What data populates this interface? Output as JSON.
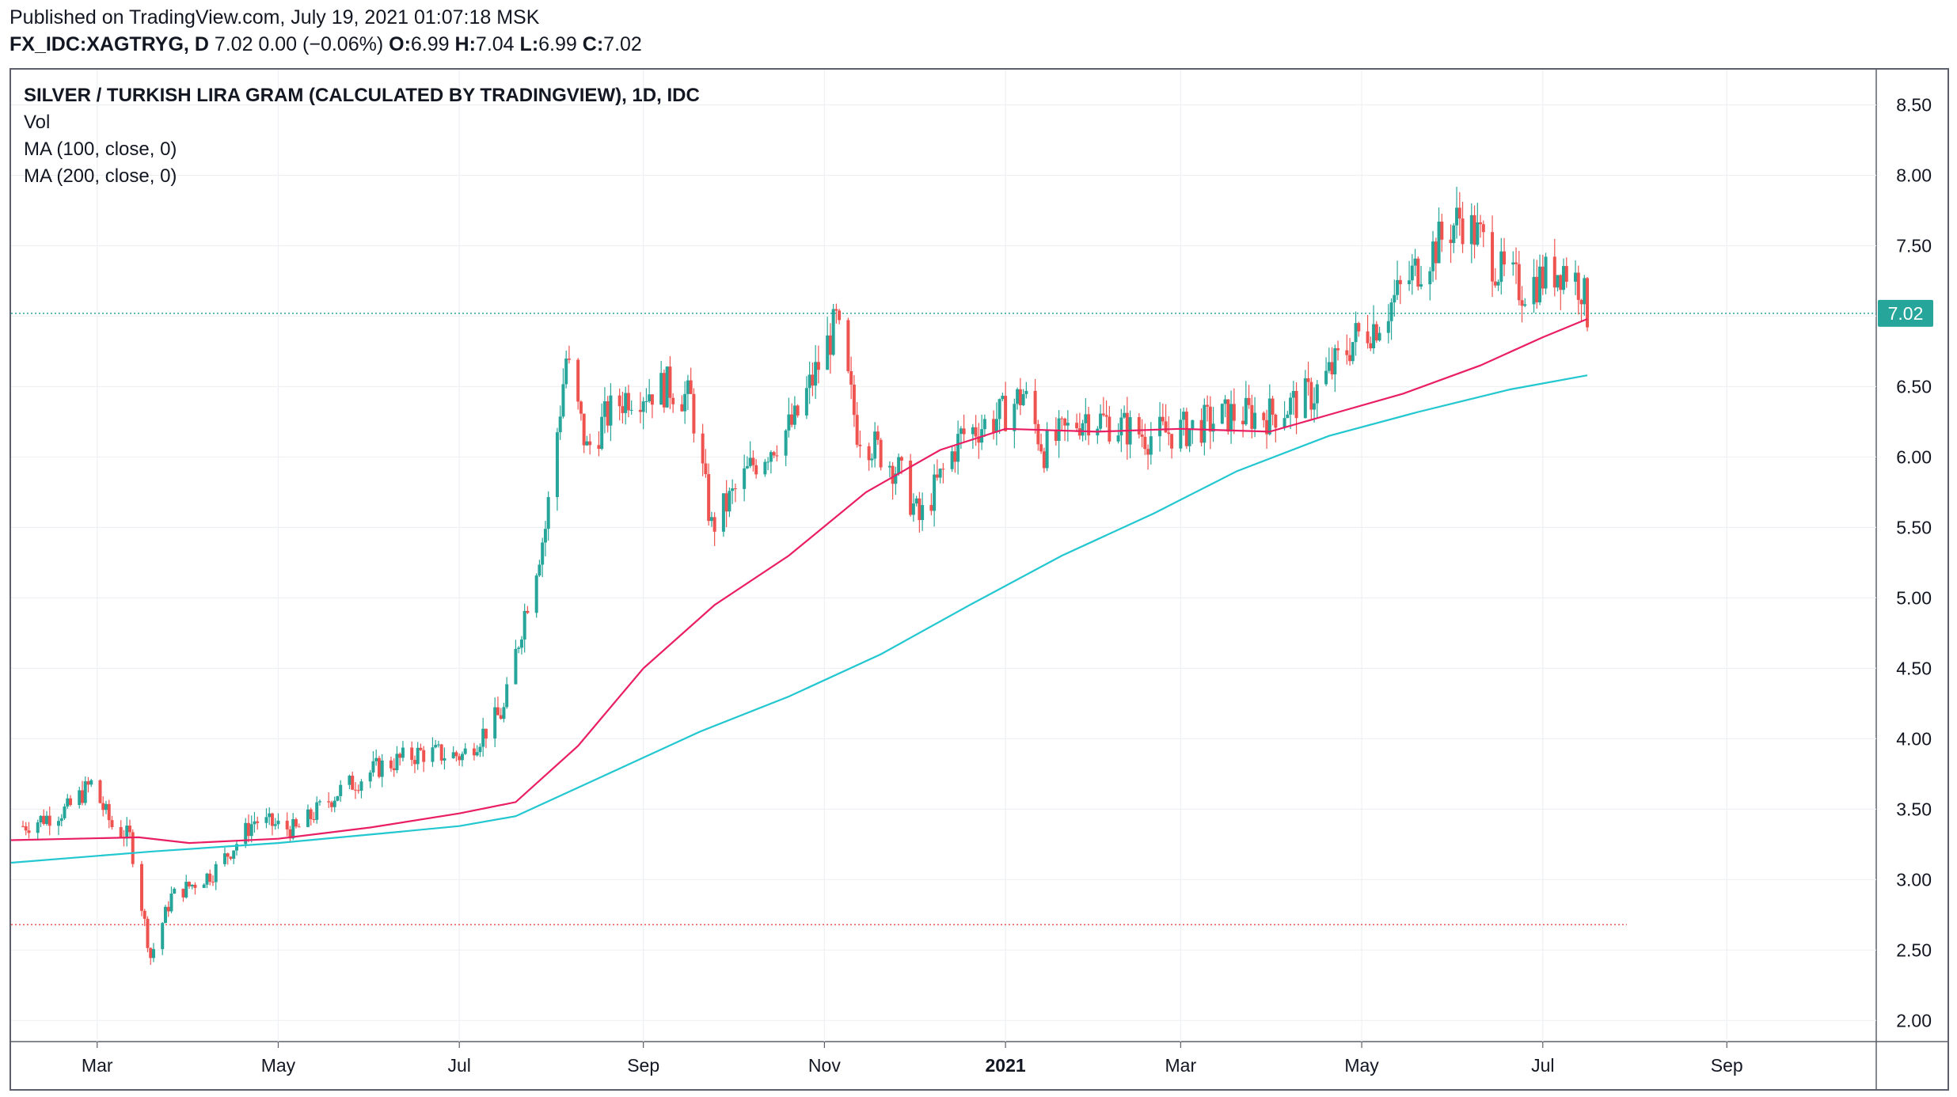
{
  "header": {
    "published": "Published on TradingView.com, July 19, 2021 01:07:18 MSK",
    "symbol": "FX_IDC:XAGTRYG, D",
    "ohlc_text": "7.02 0.00 (−0.06%)",
    "o_label": "O:",
    "o_value": "6.99",
    "h_label": "H:",
    "h_value": "7.04",
    "l_label": "L:",
    "l_value": "6.99",
    "c_label": "C:",
    "c_value": "7.02"
  },
  "legend": {
    "title": "SILVER / TURKISH LIRA GRAM (CALCULATED BY TRADINGVIEW), 1D, IDC",
    "vol": "Vol",
    "ma100": "MA (100, close, 0)",
    "ma200": "MA (200, close, 0)"
  },
  "chart_data": {
    "type": "candlestick",
    "title": "SILVER / TURKISH LIRA GRAM (CALCULATED BY TRADINGVIEW), 1D, IDC",
    "ylim": [
      1.85,
      8.75
    ],
    "y_ticks": [
      "2.00",
      "2.50",
      "3.00",
      "3.50",
      "4.00",
      "4.50",
      "5.00",
      "5.50",
      "6.00",
      "6.50",
      "7.00",
      "7.50",
      "8.00",
      "8.50"
    ],
    "x_ticks": [
      {
        "label": "Mar",
        "date": "2020-03-01",
        "bold": false
      },
      {
        "label": "May",
        "date": "2020-05-01",
        "bold": false
      },
      {
        "label": "Jul",
        "date": "2020-07-01",
        "bold": false
      },
      {
        "label": "Sep",
        "date": "2020-09-01",
        "bold": false
      },
      {
        "label": "Nov",
        "date": "2020-11-01",
        "bold": false
      },
      {
        "label": "2021",
        "date": "2021-01-01",
        "bold": true
      },
      {
        "label": "Mar",
        "date": "2021-03-01",
        "bold": false
      },
      {
        "label": "May",
        "date": "2021-05-01",
        "bold": false
      },
      {
        "label": "Jul",
        "date": "2021-07-01",
        "bold": false
      },
      {
        "label": "Sep",
        "date": "2021-09-01",
        "bold": false
      }
    ],
    "grid": true,
    "colors": {
      "up": "#26a69a",
      "down": "#ef5350",
      "ma100": "#e91e63",
      "ma200": "#22c7d0",
      "last_price": "#26a69a",
      "low_line": "#ef5350"
    },
    "last_price": {
      "value": 7.02,
      "label": "7.02"
    },
    "low_line": 2.68,
    "price_path": [
      [
        "2020-02-05",
        3.38
      ],
      [
        "2020-02-20",
        3.5
      ],
      [
        "2020-02-28",
        3.68
      ],
      [
        "2020-03-06",
        3.38
      ],
      [
        "2020-03-12",
        3.3
      ],
      [
        "2020-03-19",
        2.45
      ],
      [
        "2020-03-26",
        2.88
      ],
      [
        "2020-04-09",
        3.05
      ],
      [
        "2020-04-23",
        3.42
      ],
      [
        "2020-05-07",
        3.35
      ],
      [
        "2020-05-21",
        3.62
      ],
      [
        "2020-06-04",
        3.8
      ],
      [
        "2020-06-18",
        3.9
      ],
      [
        "2020-07-02",
        3.88
      ],
      [
        "2020-07-16",
        4.2
      ],
      [
        "2020-07-23",
        4.9
      ],
      [
        "2020-07-30",
        5.5
      ],
      [
        "2020-08-06",
        6.7
      ],
      [
        "2020-08-13",
        6.05
      ],
      [
        "2020-08-20",
        6.3
      ],
      [
        "2020-08-27",
        6.45
      ],
      [
        "2020-09-10",
        6.5
      ],
      [
        "2020-09-17",
        6.4
      ],
      [
        "2020-09-24",
        5.5
      ],
      [
        "2020-10-08",
        5.95
      ],
      [
        "2020-10-22",
        6.25
      ],
      [
        "2020-11-05",
        6.95
      ],
      [
        "2020-11-12",
        6.2
      ],
      [
        "2020-11-26",
        5.9
      ],
      [
        "2020-12-03",
        5.55
      ],
      [
        "2020-12-17",
        6.15
      ],
      [
        "2020-12-31",
        6.3
      ],
      [
        "2021-01-07",
        6.45
      ],
      [
        "2021-01-14",
        6.05
      ],
      [
        "2021-01-28",
        6.3
      ],
      [
        "2021-02-04",
        6.25
      ],
      [
        "2021-02-18",
        6.15
      ],
      [
        "2021-03-04",
        6.2
      ],
      [
        "2021-03-18",
        6.3
      ],
      [
        "2021-03-31",
        6.3
      ],
      [
        "2021-04-15",
        6.45
      ],
      [
        "2021-04-29",
        6.85
      ],
      [
        "2021-05-06",
        6.95
      ],
      [
        "2021-05-20",
        7.35
      ],
      [
        "2021-06-03",
        7.7
      ],
      [
        "2021-06-10",
        7.55
      ],
      [
        "2021-06-17",
        7.3
      ],
      [
        "2021-06-24",
        7.2
      ],
      [
        "2021-07-08",
        7.35
      ],
      [
        "2021-07-14",
        7.22
      ],
      [
        "2021-07-16",
        7.02
      ]
    ],
    "ma100": [
      [
        "2020-02-01",
        3.28
      ],
      [
        "2020-03-15",
        3.3
      ],
      [
        "2020-04-01",
        3.26
      ],
      [
        "2020-05-01",
        3.29
      ],
      [
        "2020-06-01",
        3.37
      ],
      [
        "2020-07-01",
        3.47
      ],
      [
        "2020-07-20",
        3.55
      ],
      [
        "2020-08-10",
        3.95
      ],
      [
        "2020-09-01",
        4.5
      ],
      [
        "2020-09-25",
        4.95
      ],
      [
        "2020-10-20",
        5.3
      ],
      [
        "2020-11-15",
        5.75
      ],
      [
        "2020-12-10",
        6.05
      ],
      [
        "2021-01-01",
        6.2
      ],
      [
        "2021-02-01",
        6.18
      ],
      [
        "2021-03-01",
        6.2
      ],
      [
        "2021-03-31",
        6.18
      ],
      [
        "2021-04-20",
        6.3
      ],
      [
        "2021-05-15",
        6.45
      ],
      [
        "2021-06-10",
        6.65
      ],
      [
        "2021-07-01",
        6.85
      ],
      [
        "2021-07-16",
        6.98
      ]
    ],
    "ma200": [
      [
        "2020-02-01",
        3.12
      ],
      [
        "2020-03-20",
        3.2
      ],
      [
        "2020-05-01",
        3.26
      ],
      [
        "2020-06-01",
        3.32
      ],
      [
        "2020-07-01",
        3.38
      ],
      [
        "2020-07-20",
        3.45
      ],
      [
        "2020-08-20",
        3.75
      ],
      [
        "2020-09-20",
        4.05
      ],
      [
        "2020-10-20",
        4.3
      ],
      [
        "2020-11-20",
        4.6
      ],
      [
        "2020-12-20",
        4.95
      ],
      [
        "2021-01-20",
        5.3
      ],
      [
        "2021-02-20",
        5.6
      ],
      [
        "2021-03-20",
        5.9
      ],
      [
        "2021-04-20",
        6.15
      ],
      [
        "2021-05-20",
        6.32
      ],
      [
        "2021-06-20",
        6.48
      ],
      [
        "2021-07-16",
        6.58
      ]
    ]
  }
}
